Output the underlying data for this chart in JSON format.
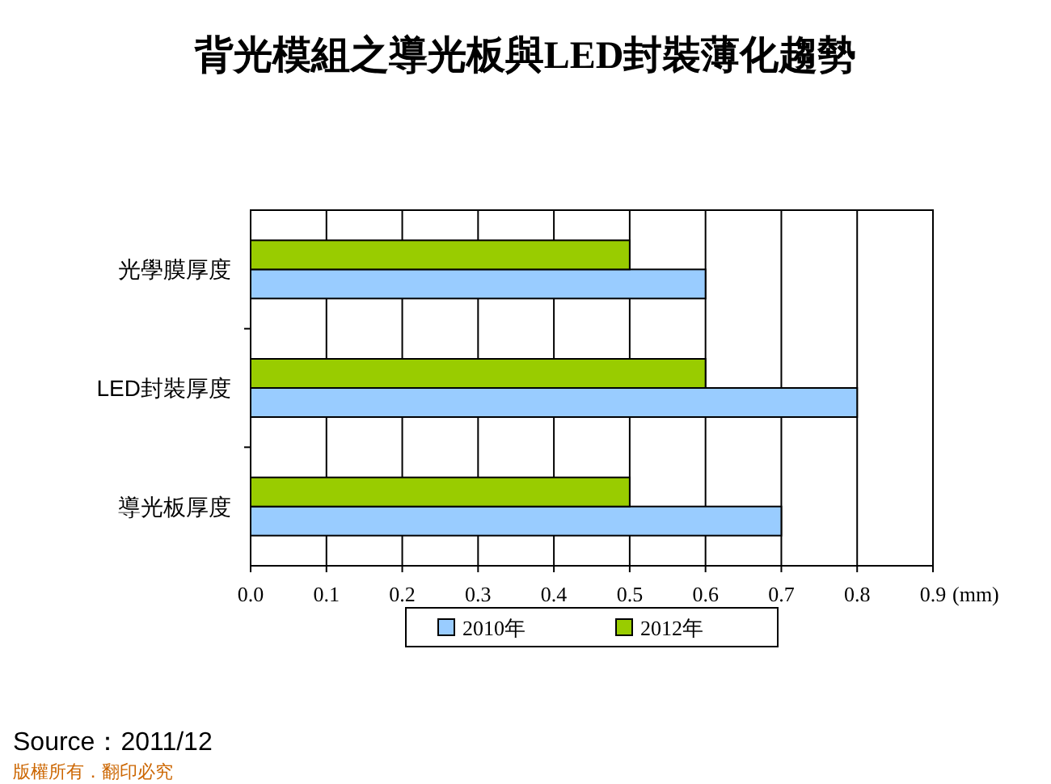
{
  "chart_data": {
    "type": "bar",
    "orientation": "horizontal",
    "title": "背光模組之導光板與LED封裝薄化趨勢",
    "xlabel": "(mm)",
    "categories": [
      "光學膜厚度",
      "LED封裝厚度",
      "導光板厚度"
    ],
    "series": [
      {
        "name": "2010年",
        "color": "#99ccff",
        "values": [
          0.6,
          0.8,
          0.7
        ]
      },
      {
        "name": "2012年",
        "color": "#99cc00",
        "values": [
          0.5,
          0.6,
          0.5
        ]
      }
    ],
    "xlim": [
      0,
      0.9
    ],
    "xticks": [
      {
        "value": 0,
        "label": "0.0"
      },
      0.1,
      0.2,
      0.3,
      0.4,
      0.5,
      0.6,
      0.7,
      0.8,
      0.9
    ],
    "grid": "x",
    "legend": "bottom",
    "annotations": [
      "Source：2011/12",
      "版權所有．翻印必究"
    ]
  }
}
